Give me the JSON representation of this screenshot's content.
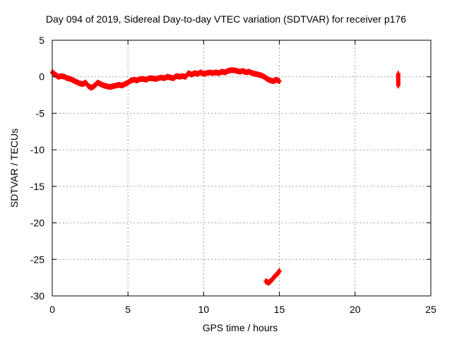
{
  "chart_data": {
    "type": "scatter",
    "title": "Day 094 of 2019, Sidereal Day-to-day VTEC variation (SDTVAR) for receiver p176",
    "xlabel": "GPS time / hours",
    "ylabel": "SDTVAR / TECUs",
    "xlim": [
      0,
      25
    ],
    "ylim": [
      -30,
      5
    ],
    "xticks": [
      0,
      5,
      10,
      15,
      20,
      25
    ],
    "yticks": [
      5,
      0,
      -5,
      -10,
      -15,
      -20,
      -25,
      -30
    ],
    "grid": true,
    "marker": "plus",
    "series": [
      {
        "color": "#ff0000",
        "segments": [
          {
            "x": [
              0.0,
              0.2,
              0.4,
              0.6,
              0.8,
              1.0,
              1.2,
              1.4,
              1.6,
              1.8,
              2.0,
              2.2,
              2.4,
              2.6,
              2.8,
              3.0,
              3.2,
              3.4,
              3.6,
              3.8,
              4.0,
              4.2,
              4.4,
              4.6,
              4.8,
              5.0,
              5.2,
              5.4,
              5.6,
              5.8,
              6.0,
              6.2,
              6.4,
              6.6,
              6.8,
              7.0,
              7.2,
              7.4,
              7.6,
              7.8,
              8.0,
              8.2,
              8.4,
              8.6,
              8.8,
              9.0,
              9.2,
              9.4,
              9.6,
              9.8,
              10.0,
              10.2,
              10.4,
              10.6,
              10.8,
              11.0,
              11.2,
              11.4,
              11.6,
              11.8,
              12.0,
              12.2,
              12.4,
              12.6,
              12.8,
              13.0,
              13.2,
              13.4,
              13.6,
              13.8,
              14.0,
              14.2,
              14.4,
              14.6,
              14.8,
              15.0
            ],
            "y": [
              0.6,
              0.3,
              0.0,
              0.1,
              0.0,
              -0.2,
              -0.3,
              -0.5,
              -0.7,
              -0.9,
              -1.0,
              -0.8,
              -1.3,
              -1.5,
              -1.2,
              -0.8,
              -1.0,
              -1.2,
              -1.3,
              -1.4,
              -1.3,
              -1.2,
              -1.1,
              -1.2,
              -1.0,
              -0.8,
              -0.5,
              -0.4,
              -0.5,
              -0.3,
              -0.3,
              -0.4,
              -0.2,
              -0.2,
              -0.3,
              -0.2,
              -0.1,
              -0.2,
              0.0,
              -0.1,
              -0.2,
              0.1,
              0.0,
              0.1,
              0.0,
              0.5,
              0.3,
              0.5,
              0.4,
              0.6,
              0.4,
              0.5,
              0.6,
              0.5,
              0.6,
              0.5,
              0.7,
              0.6,
              0.8,
              0.9,
              0.9,
              0.8,
              0.7,
              0.8,
              0.6,
              0.7,
              0.5,
              0.4,
              0.3,
              0.2,
              0.0,
              -0.3,
              -0.5,
              -0.6,
              -0.4,
              -0.6
            ]
          },
          {
            "x": [
              22.85,
              22.85,
              22.85,
              22.85,
              22.85
            ],
            "y": [
              0.4,
              0.0,
              -0.4,
              -0.8,
              -1.2
            ]
          },
          {
            "x": [
              14.1,
              14.3,
              14.5,
              14.7,
              14.9,
              15.0
            ],
            "y": [
              -28.0,
              -28.2,
              -27.8,
              -27.3,
              -26.9,
              -26.6
            ]
          }
        ]
      }
    ]
  }
}
